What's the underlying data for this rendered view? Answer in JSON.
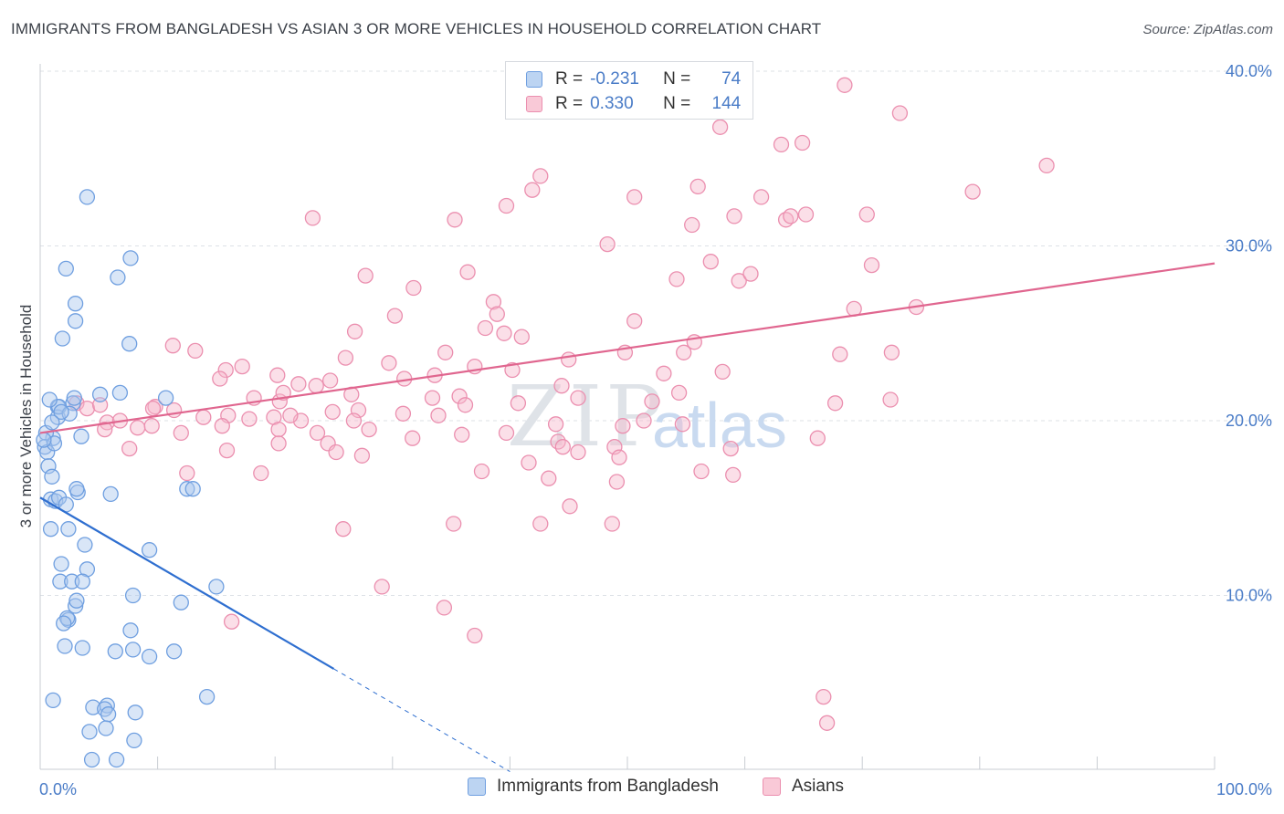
{
  "title": "IMMIGRANTS FROM BANGLADESH VS ASIAN 3 OR MORE VEHICLES IN HOUSEHOLD CORRELATION CHART",
  "source": "Source: ZipAtlas.com",
  "watermark": {
    "zip": "ZIP",
    "atlas": "atlas"
  },
  "legend": {
    "row1": {
      "r_label": "R =",
      "r_value": "-0.231",
      "n_label": "N =",
      "n_value": "74"
    },
    "row2": {
      "r_label": "R =",
      "r_value": "0.330",
      "n_label": "N =",
      "n_value": "144"
    }
  },
  "colors": {
    "blue_fill": "#aac8ee",
    "blue_stroke": "#6f9fe0",
    "blue_line": "#2f6fd0",
    "pink_fill": "#f6b9cb",
    "pink_stroke": "#eb8faf",
    "pink_line": "#e0668f",
    "tick_text": "#4a7cc7",
    "grid": "#dde1e6"
  },
  "chart_data": {
    "type": "scatter",
    "title": "IMMIGRANTS FROM BANGLADESH VS ASIAN 3 OR MORE VEHICLES IN HOUSEHOLD CORRELATION CHART",
    "xlabel": "",
    "ylabel": "3 or more Vehicles in Household",
    "xlim": [
      0,
      100
    ],
    "ylim": [
      0,
      40
    ],
    "x_tick_labels": [
      "0.0%",
      "100.0%"
    ],
    "y_ticks": [
      10,
      20,
      30,
      40
    ],
    "y_tick_labels": [
      "10.0%",
      "20.0%",
      "30.0%",
      "40.0%"
    ],
    "series": [
      {
        "name": "Immigrants from Bangladesh",
        "r": -0.231,
        "n": 74,
        "trend": {
          "x0": 0,
          "y0": 15.6,
          "x1": 25.0,
          "y1": 5.8,
          "dash_to_x": 40.0
        },
        "points": [
          [
            4.0,
            32.8
          ],
          [
            2.2,
            28.7
          ],
          [
            7.7,
            29.3
          ],
          [
            6.6,
            28.2
          ],
          [
            3.0,
            26.7
          ],
          [
            3.0,
            25.7
          ],
          [
            1.9,
            24.7
          ],
          [
            7.6,
            24.4
          ],
          [
            1.5,
            20.8
          ],
          [
            1.5,
            20.2
          ],
          [
            1.6,
            20.8
          ],
          [
            2.8,
            21.0
          ],
          [
            2.5,
            20.4
          ],
          [
            1.8,
            20.5
          ],
          [
            1.1,
            19.0
          ],
          [
            0.5,
            19.3
          ],
          [
            0.4,
            18.5
          ],
          [
            0.6,
            18.2
          ],
          [
            0.7,
            17.4
          ],
          [
            3.5,
            19.1
          ],
          [
            6.8,
            21.6
          ],
          [
            10.7,
            21.3
          ],
          [
            1.0,
            16.8
          ],
          [
            0.9,
            15.5
          ],
          [
            1.3,
            15.4
          ],
          [
            1.6,
            15.6
          ],
          [
            2.2,
            15.2
          ],
          [
            3.2,
            15.9
          ],
          [
            6.0,
            15.8
          ],
          [
            3.1,
            16.1
          ],
          [
            12.5,
            16.1
          ],
          [
            0.9,
            13.8
          ],
          [
            2.4,
            13.8
          ],
          [
            3.8,
            12.9
          ],
          [
            4.0,
            11.5
          ],
          [
            9.3,
            12.6
          ],
          [
            1.8,
            11.8
          ],
          [
            1.7,
            10.8
          ],
          [
            2.7,
            10.8
          ],
          [
            3.6,
            10.8
          ],
          [
            7.9,
            10.0
          ],
          [
            2.4,
            8.6
          ],
          [
            3.0,
            9.4
          ],
          [
            3.1,
            9.7
          ],
          [
            2.3,
            8.7
          ],
          [
            2.0,
            8.4
          ],
          [
            7.7,
            8.0
          ],
          [
            12.0,
            9.6
          ],
          [
            15.0,
            10.5
          ],
          [
            2.1,
            7.1
          ],
          [
            3.6,
            7.0
          ],
          [
            6.4,
            6.8
          ],
          [
            7.9,
            6.9
          ],
          [
            9.3,
            6.5
          ],
          [
            11.4,
            6.8
          ],
          [
            1.1,
            4.0
          ],
          [
            4.5,
            3.6
          ],
          [
            5.7,
            3.7
          ],
          [
            5.5,
            3.5
          ],
          [
            8.1,
            3.3
          ],
          [
            14.2,
            4.2
          ],
          [
            5.8,
            3.2
          ],
          [
            4.2,
            2.2
          ],
          [
            5.6,
            2.4
          ],
          [
            8.0,
            1.7
          ],
          [
            4.4,
            0.6
          ],
          [
            6.5,
            0.6
          ],
          [
            13.0,
            16.1
          ],
          [
            1.0,
            19.9
          ],
          [
            1.2,
            18.7
          ],
          [
            0.3,
            18.9
          ],
          [
            0.8,
            21.2
          ],
          [
            5.1,
            21.5
          ],
          [
            2.9,
            21.3
          ]
        ]
      },
      {
        "name": "Asians",
        "r": 0.33,
        "n": 144,
        "trend": {
          "x0": 0,
          "y0": 19.3,
          "x1": 100,
          "y1": 29.0
        },
        "points": [
          [
            68.5,
            39.2
          ],
          [
            73.2,
            37.6
          ],
          [
            57.9,
            36.8
          ],
          [
            63.1,
            35.8
          ],
          [
            64.9,
            35.9
          ],
          [
            85.7,
            34.6
          ],
          [
            42.6,
            34.0
          ],
          [
            41.9,
            33.2
          ],
          [
            56.0,
            33.4
          ],
          [
            50.6,
            32.8
          ],
          [
            61.4,
            32.8
          ],
          [
            79.4,
            33.1
          ],
          [
            39.7,
            32.3
          ],
          [
            59.1,
            31.7
          ],
          [
            65.2,
            31.8
          ],
          [
            55.5,
            31.2
          ],
          [
            63.5,
            31.5
          ],
          [
            70.4,
            31.8
          ],
          [
            23.2,
            31.6
          ],
          [
            35.3,
            31.5
          ],
          [
            63.9,
            31.7
          ],
          [
            48.3,
            30.1
          ],
          [
            57.1,
            29.1
          ],
          [
            70.8,
            28.9
          ],
          [
            54.2,
            28.1
          ],
          [
            59.5,
            28.0
          ],
          [
            60.5,
            28.4
          ],
          [
            36.4,
            28.5
          ],
          [
            27.7,
            28.3
          ],
          [
            31.8,
            27.6
          ],
          [
            38.6,
            26.8
          ],
          [
            30.2,
            26.0
          ],
          [
            69.3,
            26.4
          ],
          [
            74.6,
            26.5
          ],
          [
            26.8,
            25.1
          ],
          [
            37.9,
            25.3
          ],
          [
            38.9,
            26.1
          ],
          [
            50.6,
            25.7
          ],
          [
            39.5,
            25.0
          ],
          [
            41.0,
            24.8
          ],
          [
            55.7,
            24.5
          ],
          [
            29.7,
            23.3
          ],
          [
            34.5,
            23.9
          ],
          [
            37.0,
            23.1
          ],
          [
            45.0,
            23.5
          ],
          [
            49.8,
            23.9
          ],
          [
            54.8,
            23.9
          ],
          [
            68.1,
            23.8
          ],
          [
            72.5,
            23.9
          ],
          [
            11.3,
            24.3
          ],
          [
            13.2,
            24.0
          ],
          [
            15.8,
            22.9
          ],
          [
            17.2,
            23.1
          ],
          [
            20.2,
            22.6
          ],
          [
            24.7,
            22.3
          ],
          [
            26.0,
            23.6
          ],
          [
            31.0,
            22.4
          ],
          [
            33.6,
            22.6
          ],
          [
            40.2,
            22.9
          ],
          [
            53.1,
            22.7
          ],
          [
            58.1,
            22.8
          ],
          [
            15.3,
            22.4
          ],
          [
            22.0,
            22.1
          ],
          [
            23.5,
            22.0
          ],
          [
            26.5,
            21.5
          ],
          [
            33.4,
            21.3
          ],
          [
            35.7,
            21.4
          ],
          [
            40.7,
            21.0
          ],
          [
            45.8,
            21.3
          ],
          [
            52.1,
            21.1
          ],
          [
            54.4,
            21.6
          ],
          [
            67.7,
            21.0
          ],
          [
            18.2,
            21.3
          ],
          [
            20.4,
            21.1
          ],
          [
            9.8,
            20.8
          ],
          [
            11.4,
            20.6
          ],
          [
            13.9,
            20.2
          ],
          [
            16.0,
            20.3
          ],
          [
            17.8,
            20.1
          ],
          [
            19.9,
            20.2
          ],
          [
            22.2,
            20.0
          ],
          [
            24.9,
            20.5
          ],
          [
            27.1,
            20.6
          ],
          [
            30.9,
            20.4
          ],
          [
            33.9,
            20.3
          ],
          [
            36.2,
            20.9
          ],
          [
            43.9,
            19.8
          ],
          [
            49.6,
            19.7
          ],
          [
            51.4,
            20.0
          ],
          [
            54.7,
            19.8
          ],
          [
            3.1,
            21.0
          ],
          [
            4.0,
            20.7
          ],
          [
            5.1,
            20.9
          ],
          [
            5.7,
            19.9
          ],
          [
            6.8,
            20.0
          ],
          [
            8.3,
            19.6
          ],
          [
            9.5,
            19.7
          ],
          [
            12.0,
            19.3
          ],
          [
            15.5,
            19.7
          ],
          [
            20.3,
            19.5
          ],
          [
            23.6,
            19.3
          ],
          [
            28.0,
            19.5
          ],
          [
            31.7,
            19.0
          ],
          [
            35.9,
            19.2
          ],
          [
            39.7,
            19.3
          ],
          [
            44.1,
            18.8
          ],
          [
            44.5,
            18.5
          ],
          [
            45.8,
            18.2
          ],
          [
            48.9,
            18.5
          ],
          [
            5.5,
            19.5
          ],
          [
            7.6,
            18.4
          ],
          [
            12.5,
            17.0
          ],
          [
            15.9,
            18.3
          ],
          [
            20.3,
            18.7
          ],
          [
            24.5,
            18.7
          ],
          [
            27.4,
            18.0
          ],
          [
            37.6,
            17.1
          ],
          [
            41.6,
            17.6
          ],
          [
            49.3,
            17.9
          ],
          [
            56.3,
            17.1
          ],
          [
            58.8,
            18.4
          ],
          [
            66.2,
            19.0
          ],
          [
            59.0,
            16.9
          ],
          [
            49.1,
            16.5
          ],
          [
            48.7,
            14.1
          ],
          [
            45.1,
            15.1
          ],
          [
            42.6,
            14.1
          ],
          [
            35.2,
            14.1
          ],
          [
            25.8,
            13.8
          ],
          [
            16.3,
            8.5
          ],
          [
            29.1,
            10.5
          ],
          [
            34.4,
            9.3
          ],
          [
            37.0,
            7.7
          ],
          [
            66.7,
            4.2
          ],
          [
            67.0,
            2.7
          ],
          [
            18.8,
            17.0
          ],
          [
            43.3,
            16.7
          ],
          [
            72.4,
            21.2
          ],
          [
            20.7,
            21.6
          ],
          [
            44.4,
            22.0
          ],
          [
            26.7,
            20.0
          ],
          [
            25.2,
            18.2
          ],
          [
            21.3,
            20.3
          ],
          [
            9.6,
            20.7
          ]
        ]
      }
    ],
    "legend_items": [
      "Immigrants from Bangladesh",
      "Asians"
    ]
  }
}
